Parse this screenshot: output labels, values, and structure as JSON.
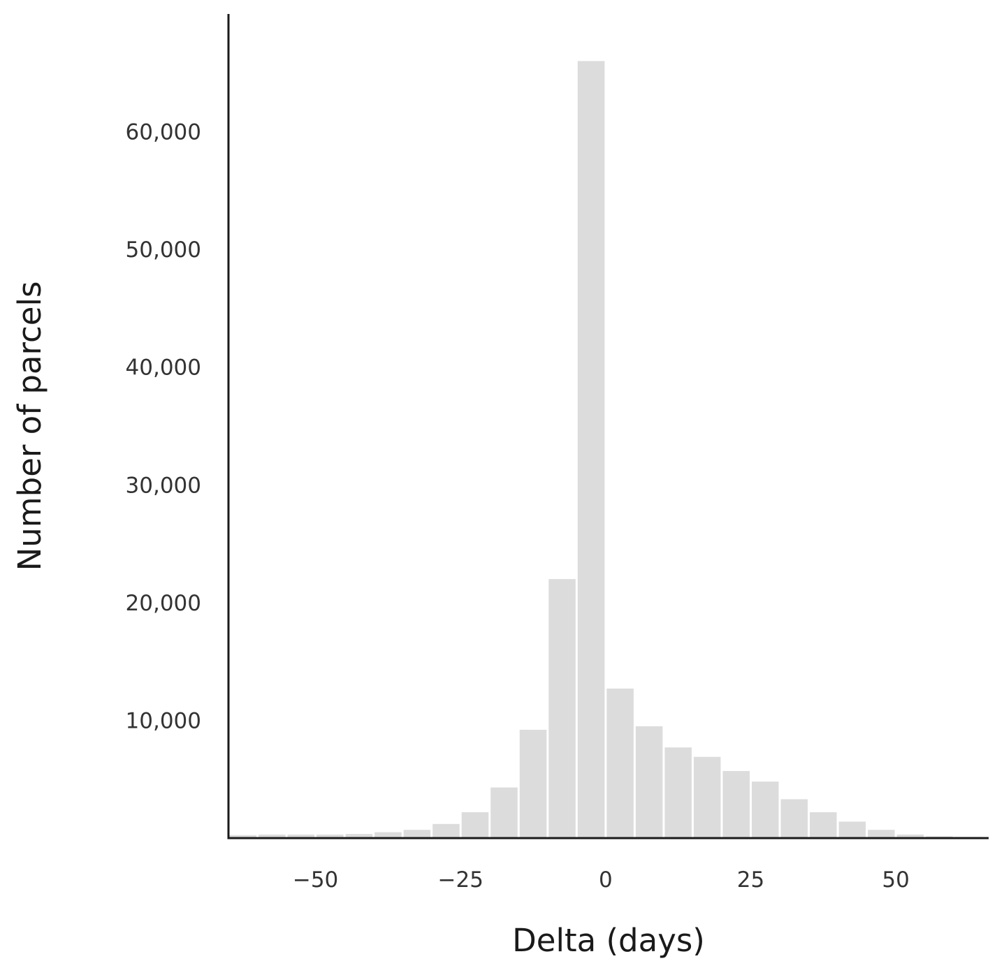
{
  "chart_data": {
    "type": "bar",
    "xlabel": "Delta (days)",
    "ylabel": "Number of parcels",
    "xlim": [
      -65,
      66
    ],
    "ylim": [
      0,
      70000
    ],
    "bin_width": 5,
    "bins": [
      {
        "x_start": -65,
        "x_end": -60,
        "count": 250
      },
      {
        "x_start": -60,
        "x_end": -55,
        "count": 300
      },
      {
        "x_start": -55,
        "x_end": -50,
        "count": 300
      },
      {
        "x_start": -50,
        "x_end": -45,
        "count": 300
      },
      {
        "x_start": -45,
        "x_end": -40,
        "count": 350
      },
      {
        "x_start": -40,
        "x_end": -35,
        "count": 500
      },
      {
        "x_start": -35,
        "x_end": -30,
        "count": 700
      },
      {
        "x_start": -30,
        "x_end": -25,
        "count": 1200
      },
      {
        "x_start": -25,
        "x_end": -20,
        "count": 2200
      },
      {
        "x_start": -20,
        "x_end": -15,
        "count": 4300
      },
      {
        "x_start": -15,
        "x_end": -10,
        "count": 9200
      },
      {
        "x_start": -10,
        "x_end": -5,
        "count": 22000
      },
      {
        "x_start": -5,
        "x_end": 0,
        "count": 66000
      },
      {
        "x_start": 0,
        "x_end": 5,
        "count": 12700
      },
      {
        "x_start": 5,
        "x_end": 10,
        "count": 9500
      },
      {
        "x_start": 10,
        "x_end": 15,
        "count": 7700
      },
      {
        "x_start": 15,
        "x_end": 20,
        "count": 6900
      },
      {
        "x_start": 20,
        "x_end": 25,
        "count": 5700
      },
      {
        "x_start": 25,
        "x_end": 30,
        "count": 4800
      },
      {
        "x_start": 30,
        "x_end": 35,
        "count": 3300
      },
      {
        "x_start": 35,
        "x_end": 40,
        "count": 2200
      },
      {
        "x_start": 40,
        "x_end": 45,
        "count": 1400
      },
      {
        "x_start": 45,
        "x_end": 50,
        "count": 700
      },
      {
        "x_start": 50,
        "x_end": 55,
        "count": 300
      },
      {
        "x_start": 55,
        "x_end": 60,
        "count": 150
      },
      {
        "x_start": 60,
        "x_end": 65,
        "count": 100
      }
    ],
    "x_ticks": [
      {
        "value": -50,
        "label": "−50"
      },
      {
        "value": -25,
        "label": "−25"
      },
      {
        "value": 0,
        "label": "0"
      },
      {
        "value": 25,
        "label": "25"
      },
      {
        "value": 50,
        "label": "50"
      }
    ],
    "y_ticks": [
      {
        "value": 10000,
        "label": "10,000"
      },
      {
        "value": 20000,
        "label": "20,000"
      },
      {
        "value": 30000,
        "label": "30,000"
      },
      {
        "value": 40000,
        "label": "40,000"
      },
      {
        "value": 50000,
        "label": "50,000"
      },
      {
        "value": 60000,
        "label": "60,000"
      }
    ],
    "grid": false,
    "bar_color": "#dcdcdc",
    "axis_color": "#1a1a1a"
  }
}
